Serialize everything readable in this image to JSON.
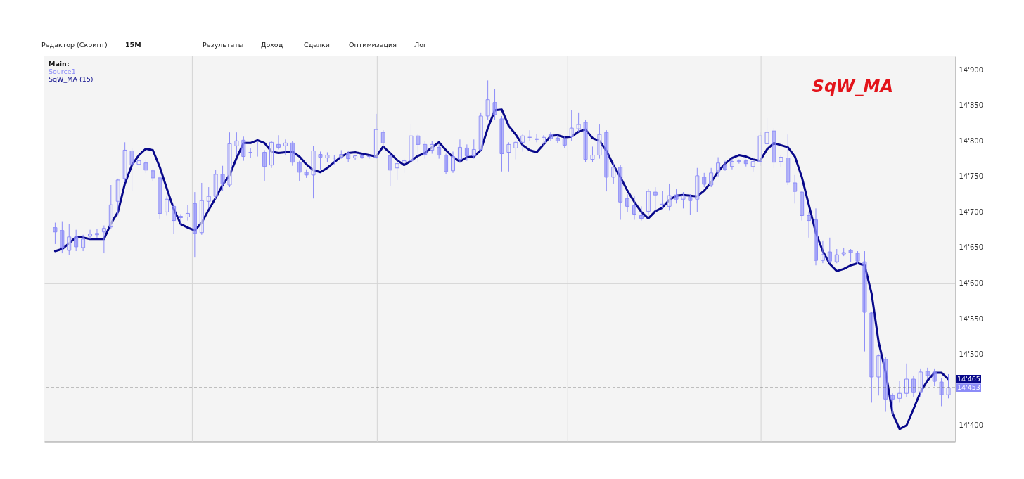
{
  "chart_data": {
    "type": "candlestick",
    "title": "SqW_MA",
    "categories": [
      null,
      null,
      null,
      null,
      null,
      null,
      null,
      null,
      null,
      null,
      null,
      null,
      null,
      null,
      null,
      null,
      null,
      null,
      null,
      null,
      null,
      null,
      null,
      null,
      null,
      null,
      null,
      null,
      null,
      null,
      null,
      null,
      null,
      null,
      null,
      null,
      null,
      null,
      null,
      null,
      null,
      null,
      null,
      null,
      null,
      null,
      null,
      null,
      null,
      null,
      null,
      null,
      null,
      null,
      null,
      null,
      null,
      null,
      null,
      null,
      null,
      null,
      null,
      null,
      null,
      null,
      null,
      null,
      null,
      null,
      null,
      null,
      null,
      null,
      null,
      null,
      null,
      null,
      null,
      null,
      null,
      null,
      null,
      null,
      null,
      null,
      null,
      null,
      null,
      null,
      null,
      null,
      null,
      null,
      null,
      null,
      null,
      null,
      null,
      null,
      null,
      null,
      null,
      null,
      null,
      null,
      null,
      null,
      null,
      null,
      null,
      null,
      null,
      null,
      null,
      null,
      null,
      null,
      null,
      null,
      null,
      null,
      null,
      null,
      null,
      null,
      null,
      null,
      null
    ],
    "series": [
      {
        "name": "Source1",
        "type": "candlestick",
        "color": "#8c8cf8",
        "ohlc": [
          [
            14678,
            14685,
            14655,
            14672
          ],
          [
            14674,
            14687,
            14642,
            14650
          ],
          [
            14646,
            14683,
            14640,
            14665
          ],
          [
            14665,
            14675,
            14645,
            14651
          ],
          [
            14650,
            14668,
            14645,
            14662
          ],
          [
            14666,
            14675,
            14662,
            14669
          ],
          [
            14670,
            14676,
            14664,
            14668
          ],
          [
            14672,
            14681,
            14642,
            14677
          ],
          [
            14679,
            14738,
            14676,
            14710
          ],
          [
            14715,
            14747,
            14695,
            14745
          ],
          [
            14747,
            14798,
            14742,
            14787
          ],
          [
            14786,
            14790,
            14730,
            14766
          ],
          [
            14767,
            14777,
            14758,
            14772
          ],
          [
            14769,
            14773,
            14755,
            14759
          ],
          [
            14758,
            14760,
            14744,
            14748
          ],
          [
            14748,
            14750,
            14690,
            14698
          ],
          [
            14700,
            14722,
            14695,
            14718
          ],
          [
            14708,
            14712,
            14669,
            14688
          ],
          [
            14692,
            14697,
            14680,
            14694
          ],
          [
            14693,
            14710,
            14688,
            14698
          ],
          [
            14712,
            14728,
            14636,
            14670
          ],
          [
            14671,
            14741,
            14668,
            14716
          ],
          [
            14715,
            14735,
            14705,
            14722
          ],
          [
            14722,
            14759,
            14718,
            14753
          ],
          [
            14753,
            14765,
            14730,
            14739
          ],
          [
            14738,
            14812,
            14735,
            14796
          ],
          [
            14793,
            14812,
            14780,
            14800
          ],
          [
            14801,
            14806,
            14772,
            14778
          ],
          [
            14784,
            14790,
            14776,
            14784
          ],
          [
            14783,
            14800,
            14778,
            14783
          ],
          [
            14784,
            14787,
            14744,
            14764
          ],
          [
            14766,
            14800,
            14762,
            14798
          ],
          [
            14795,
            14808,
            14788,
            14791
          ],
          [
            14793,
            14802,
            14780,
            14797
          ],
          [
            14797,
            14800,
            14765,
            14770
          ],
          [
            14770,
            14772,
            14744,
            14756
          ],
          [
            14756,
            14760,
            14748,
            14752
          ],
          [
            14752,
            14793,
            14719,
            14786
          ],
          [
            14781,
            14785,
            14760,
            14777
          ],
          [
            14776,
            14784,
            14770,
            14780
          ],
          [
            14776,
            14780,
            14767,
            14776
          ],
          [
            14777,
            14787,
            14775,
            14781
          ],
          [
            14782,
            14786,
            14770,
            14775
          ],
          [
            14776,
            14780,
            14773,
            14779
          ],
          [
            14779,
            14781,
            14775,
            14777
          ],
          [
            14778,
            14780,
            14775,
            14778
          ],
          [
            14777,
            14838,
            14775,
            14816
          ],
          [
            14812,
            14815,
            14790,
            14797
          ],
          [
            14779,
            14785,
            14737,
            14759
          ],
          [
            14762,
            14775,
            14745,
            14768
          ],
          [
            14770,
            14775,
            14755,
            14772
          ],
          [
            14772,
            14823,
            14768,
            14807
          ],
          [
            14807,
            14810,
            14770,
            14795
          ],
          [
            14795,
            14800,
            14775,
            14781
          ],
          [
            14787,
            14800,
            14782,
            14795
          ],
          [
            14791,
            14795,
            14775,
            14780
          ],
          [
            14780,
            14782,
            14753,
            14757
          ],
          [
            14758,
            14785,
            14755,
            14778
          ],
          [
            14774,
            14802,
            14770,
            14791
          ],
          [
            14790,
            14795,
            14772,
            14779
          ],
          [
            14779,
            14802,
            14775,
            14788
          ],
          [
            14788,
            14840,
            14785,
            14835
          ],
          [
            14835,
            14885,
            14830,
            14858
          ],
          [
            14854,
            14873,
            14830,
            14837
          ],
          [
            14831,
            14835,
            14757,
            14782
          ],
          [
            14784,
            14798,
            14757,
            14795
          ],
          [
            14790,
            14800,
            14774,
            14798
          ],
          [
            14798,
            14810,
            14785,
            14807
          ],
          [
            14805,
            14815,
            14800,
            14805
          ],
          [
            14803,
            14810,
            14798,
            14802
          ],
          [
            14797,
            14808,
            14793,
            14805
          ],
          [
            14809,
            14812,
            14800,
            14803
          ],
          [
            14804,
            14808,
            14797,
            14800
          ],
          [
            14803,
            14806,
            14790,
            14794
          ],
          [
            14806,
            14843,
            14800,
            14818
          ],
          [
            14817,
            14840,
            14812,
            14823
          ],
          [
            14826,
            14830,
            14770,
            14774
          ],
          [
            14774,
            14792,
            14770,
            14780
          ],
          [
            14780,
            14823,
            14775,
            14809
          ],
          [
            14812,
            14815,
            14729,
            14749
          ],
          [
            14749,
            14769,
            14740,
            14763
          ],
          [
            14763,
            14766,
            14689,
            14714
          ],
          [
            14719,
            14725,
            14700,
            14708
          ],
          [
            14709,
            14722,
            14689,
            14697
          ],
          [
            14695,
            14708,
            14688,
            14691
          ],
          [
            14701,
            14733,
            14695,
            14729
          ],
          [
            14728,
            14735,
            14700,
            14724
          ],
          [
            14710,
            14730,
            14705,
            14711
          ],
          [
            14708,
            14740,
            14702,
            14723
          ],
          [
            14724,
            14732,
            14712,
            14718
          ],
          [
            14718,
            14728,
            14705,
            14723
          ],
          [
            14721,
            14725,
            14696,
            14716
          ],
          [
            14718,
            14762,
            14700,
            14751
          ],
          [
            14749,
            14755,
            14735,
            14739
          ],
          [
            14738,
            14762,
            14735,
            14755
          ],
          [
            14756,
            14777,
            14750,
            14769
          ],
          [
            14765,
            14772,
            14758,
            14760
          ],
          [
            14764,
            14775,
            14760,
            14771
          ],
          [
            14771,
            14774,
            14768,
            14772
          ],
          [
            14772,
            14774,
            14764,
            14768
          ],
          [
            14764,
            14773,
            14757,
            14771
          ],
          [
            14771,
            14812,
            14765,
            14807
          ],
          [
            14796,
            14832,
            14790,
            14812
          ],
          [
            14814,
            14818,
            14762,
            14770
          ],
          [
            14771,
            14780,
            14763,
            14777
          ],
          [
            14776,
            14809,
            14738,
            14742
          ],
          [
            14741,
            14752,
            14712,
            14729
          ],
          [
            14728,
            14730,
            14688,
            14695
          ],
          [
            14695,
            14700,
            14664,
            14688
          ],
          [
            14689,
            14705,
            14625,
            14632
          ],
          [
            14632,
            14660,
            14628,
            14640
          ],
          [
            14644,
            14664,
            14628,
            14631
          ],
          [
            14630,
            14648,
            14628,
            14640
          ],
          [
            14641,
            14650,
            14638,
            14643
          ],
          [
            14646,
            14648,
            14630,
            14643
          ],
          [
            14642,
            14645,
            14627,
            14631
          ],
          [
            14630,
            14645,
            14504,
            14559
          ],
          [
            14558,
            14560,
            14432,
            14468
          ],
          [
            14468,
            14500,
            14442,
            14498
          ],
          [
            14493,
            14496,
            14419,
            14437
          ],
          [
            14442,
            14445,
            14415,
            14437
          ],
          [
            14438,
            14463,
            14432,
            14445
          ],
          [
            14445,
            14487,
            14440,
            14465
          ],
          [
            14465,
            14470,
            14440,
            14446
          ],
          [
            14446,
            14480,
            14440,
            14475
          ],
          [
            14476,
            14481,
            14465,
            14470
          ],
          [
            14475,
            14480,
            14455,
            14462
          ],
          [
            14461,
            14466,
            14427,
            14443
          ],
          [
            14443,
            14472,
            14438,
            14453
          ]
        ]
      },
      {
        "name": "SqW_MA (15)",
        "type": "line",
        "color": "#08088a",
        "values": [
          14645,
          14648,
          14656,
          14665,
          14664,
          14662,
          14662,
          14662,
          14684,
          14700,
          14740,
          14766,
          14780,
          14789,
          14787,
          14763,
          14733,
          14704,
          14683,
          14678,
          14674,
          14685,
          14703,
          14720,
          14738,
          14752,
          14776,
          14797,
          14797,
          14801,
          14797,
          14785,
          14783,
          14784,
          14785,
          14778,
          14767,
          14759,
          14756,
          14762,
          14770,
          14778,
          14783,
          14784,
          14782,
          14780,
          14778,
          14792,
          14783,
          14773,
          14766,
          14772,
          14779,
          14783,
          14791,
          14798,
          14787,
          14777,
          14771,
          14777,
          14778,
          14787,
          14818,
          14843,
          14844,
          14821,
          14809,
          14794,
          14787,
          14784,
          14795,
          14807,
          14808,
          14805,
          14806,
          14813,
          14816,
          14804,
          14800,
          14786,
          14766,
          14749,
          14730,
          14714,
          14700,
          14691,
          14701,
          14706,
          14717,
          14723,
          14724,
          14723,
          14722,
          14730,
          14742,
          14757,
          14768,
          14776,
          14780,
          14778,
          14774,
          14772,
          14788,
          14797,
          14794,
          14791,
          14778,
          14749,
          14710,
          14671,
          14645,
          14627,
          14617,
          14620,
          14625,
          14628,
          14625,
          14585,
          14517,
          14475,
          14417,
          14395,
          14400,
          14423,
          14447,
          14463,
          14474,
          14474,
          14465
        ]
      }
    ],
    "ylim": [
      14377,
      14919
    ],
    "yticks": [
      {
        "value": 14400,
        "label": "14'400"
      },
      {
        "value": 14450,
        "label": null
      },
      {
        "value": 14500,
        "label": "14'500"
      },
      {
        "value": 14550,
        "label": "14'550"
      },
      {
        "value": 14600,
        "label": "14'600"
      },
      {
        "value": 14650,
        "label": "14'650"
      },
      {
        "value": 14700,
        "label": "14'700"
      },
      {
        "value": 14750,
        "label": "14'750"
      },
      {
        "value": 14800,
        "label": "14'800"
      },
      {
        "value": 14850,
        "label": "14'850"
      },
      {
        "value": 14900,
        "label": "14'900"
      }
    ],
    "grid": true,
    "legend": "top left",
    "tick_labels": "y",
    "ref_lines": [
      {
        "axis": "y",
        "value": 14453,
        "label": "14'453",
        "color": "#555555",
        "line_style": "dashed"
      }
    ],
    "annotations": [
      "Редактор (Скрипт)",
      "15M",
      "Результаты",
      "Доход",
      "Сделки",
      "Оптимизация",
      "Лог",
      "Main:",
      "14'465"
    ]
  }
}
